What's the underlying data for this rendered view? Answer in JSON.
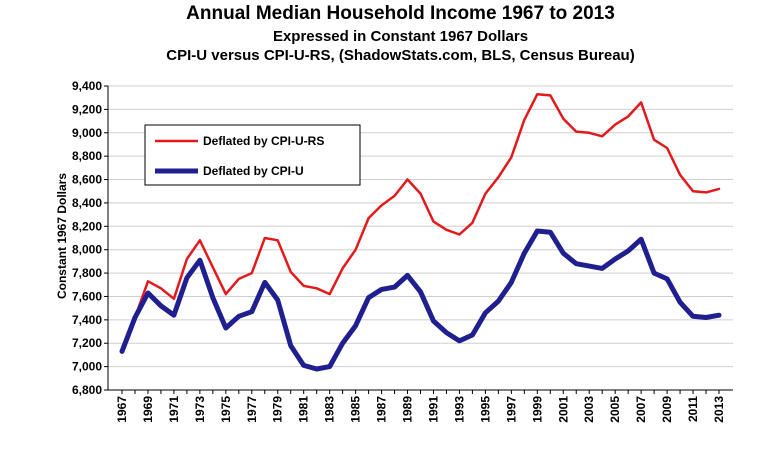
{
  "title": "Annual Median Household Income 1967 to 2013",
  "subtitle1": "Expressed in Constant 1967 Dollars",
  "subtitle2": "CPI-U versus CPI-U-RS, (ShadowStats.com, BLS, Census Bureau)",
  "chart_data": {
    "type": "line",
    "title": "Annual Median Household Income 1967 to 2013",
    "xlabel": "",
    "ylabel": "Constant 1967 Dollars",
    "ylim": [
      6800,
      9400
    ],
    "ytick_step": 200,
    "x": [
      1967,
      1968,
      1969,
      1970,
      1971,
      1972,
      1973,
      1974,
      1975,
      1976,
      1977,
      1978,
      1979,
      1980,
      1981,
      1982,
      1983,
      1984,
      1985,
      1986,
      1987,
      1988,
      1989,
      1990,
      1991,
      1992,
      1993,
      1994,
      1995,
      1996,
      1997,
      1998,
      1999,
      2000,
      2001,
      2002,
      2003,
      2004,
      2005,
      2006,
      2007,
      2008,
      2009,
      2010,
      2011,
      2012,
      2013
    ],
    "x_tick_labels": [
      "1967",
      "1969",
      "1971",
      "1973",
      "1975",
      "1977",
      "1979",
      "1981",
      "1983",
      "1985",
      "1987",
      "1989",
      "1991",
      "1993",
      "1995",
      "1997",
      "1999",
      "2001",
      "2003",
      "2005",
      "2007",
      "2009",
      "2011",
      "2013"
    ],
    "y_tick_labels": [
      "6,800",
      "7,000",
      "7,200",
      "7,400",
      "7,600",
      "7,800",
      "8,000",
      "8,200",
      "8,400",
      "8,600",
      "8,800",
      "9,000",
      "9,200",
      "9,400"
    ],
    "legend_position": "upper-left",
    "series": [
      {
        "name": "Deflated by CPI-U-RS",
        "color": "#e31a1c",
        "line_width": "thin",
        "values": [
          7130,
          7420,
          7730,
          7670,
          7580,
          7920,
          8080,
          7850,
          7620,
          7750,
          7800,
          8100,
          8080,
          7810,
          7690,
          7670,
          7620,
          7840,
          8000,
          8270,
          8380,
          8460,
          8600,
          8480,
          8240,
          8170,
          8130,
          8230,
          8480,
          8620,
          8790,
          9110,
          9330,
          9320,
          9120,
          9010,
          9000,
          8970,
          9070,
          9140,
          9260,
          8940,
          8870,
          8640,
          8500,
          8490,
          8520
        ]
      },
      {
        "name": "Deflated by CPI-U",
        "color": "#1f1f8f",
        "line_width": "thick",
        "values": [
          7130,
          7420,
          7630,
          7520,
          7440,
          7760,
          7910,
          7590,
          7330,
          7430,
          7470,
          7720,
          7570,
          7180,
          7010,
          6980,
          7000,
          7200,
          7350,
          7590,
          7660,
          7680,
          7780,
          7640,
          7390,
          7290,
          7220,
          7270,
          7460,
          7560,
          7720,
          7970,
          8160,
          8150,
          7970,
          7880,
          7860,
          7840,
          7920,
          7990,
          8090,
          7800,
          7750,
          7550,
          7430,
          7420,
          7440
        ]
      }
    ]
  }
}
